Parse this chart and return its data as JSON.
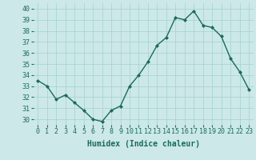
{
  "x": [
    0,
    1,
    2,
    3,
    4,
    5,
    6,
    7,
    8,
    9,
    10,
    11,
    12,
    13,
    14,
    15,
    16,
    17,
    18,
    19,
    20,
    21,
    22,
    23
  ],
  "y": [
    33.5,
    33.0,
    31.8,
    32.2,
    31.5,
    30.8,
    30.0,
    29.8,
    30.8,
    31.2,
    33.0,
    34.0,
    35.2,
    36.7,
    37.4,
    39.2,
    39.0,
    39.8,
    38.5,
    38.3,
    37.5,
    35.5,
    34.3,
    32.7
  ],
  "line_color": "#1a6b5a",
  "marker": "D",
  "marker_size": 2,
  "bg_color": "#cce8e8",
  "grid_color": "#aad4d4",
  "xlabel": "Humidex (Indice chaleur)",
  "xlim": [
    -0.5,
    23.5
  ],
  "ylim": [
    29.5,
    40.5
  ],
  "yticks": [
    30,
    31,
    32,
    33,
    34,
    35,
    36,
    37,
    38,
    39,
    40
  ],
  "xticks": [
    0,
    1,
    2,
    3,
    4,
    5,
    6,
    7,
    8,
    9,
    10,
    11,
    12,
    13,
    14,
    15,
    16,
    17,
    18,
    19,
    20,
    21,
    22,
    23
  ],
  "tick_color": "#1a6b5a",
  "label_fontsize": 7,
  "tick_fontsize": 6,
  "line_width": 1.0
}
